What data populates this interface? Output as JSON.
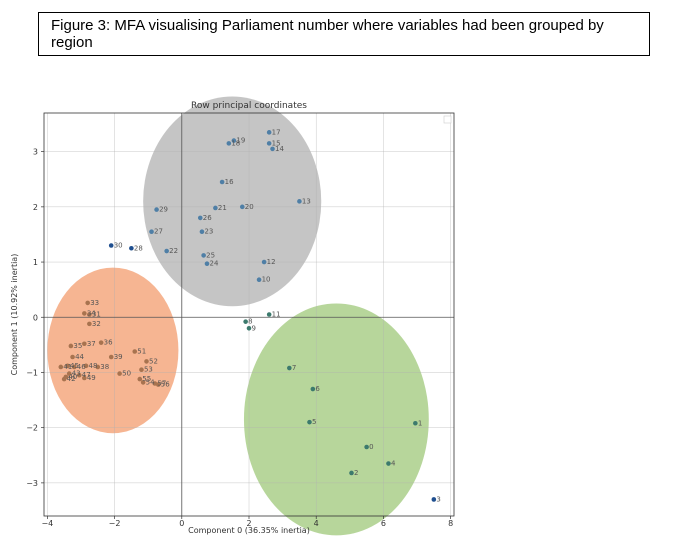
{
  "caption": "Figure 3: MFA visualising Parliament number where variables had been grouped by region",
  "chart_data": {
    "type": "scatter",
    "title": "Row principal coordinates",
    "xlabel": "Component 0 (36.35% inertia)",
    "ylabel": "Component 1 (10.92% inertia)",
    "xlim": [
      -4.1,
      8.1
    ],
    "ylim": [
      -3.6,
      3.7
    ],
    "xticks": [
      {
        "v": -4,
        "t": "−4"
      },
      {
        "v": -2,
        "t": "−2"
      },
      {
        "v": 0,
        "t": "0"
      },
      {
        "v": 2,
        "t": "2"
      },
      {
        "v": 4,
        "t": "4"
      },
      {
        "v": 6,
        "t": "6"
      },
      {
        "v": 8,
        "t": "8"
      }
    ],
    "yticks": [
      {
        "v": 3,
        "t": "3"
      },
      {
        "v": 2,
        "t": "2"
      },
      {
        "v": 1,
        "t": "1"
      },
      {
        "v": 0,
        "t": "0"
      },
      {
        "v": -1,
        "t": "−1"
      },
      {
        "v": -2,
        "t": "−2"
      },
      {
        "v": -3,
        "t": "−3"
      }
    ],
    "grid": true,
    "cluster_ellipses": [
      {
        "cx": 1.5,
        "cy": 2.1,
        "rx": 2.65,
        "ry": 1.9,
        "color": "#b8b8b8"
      },
      {
        "cx": -2.05,
        "cy": -0.6,
        "rx": 1.95,
        "ry": 1.5,
        "color": "#f4a57a"
      },
      {
        "cx": 4.6,
        "cy": -1.85,
        "rx": 2.75,
        "ry": 2.1,
        "color": "#a7cd85"
      }
    ],
    "points": [
      {
        "id": "19",
        "x": 1.55,
        "y": 3.2,
        "color": "#4f7fa6"
      },
      {
        "id": "18",
        "x": 1.4,
        "y": 3.15,
        "color": "#4f7fa6"
      },
      {
        "id": "17",
        "x": 2.6,
        "y": 3.35,
        "color": "#4f7fa6"
      },
      {
        "id": "15",
        "x": 2.6,
        "y": 3.15,
        "color": "#4f7fa6"
      },
      {
        "id": "14",
        "x": 2.7,
        "y": 3.05,
        "color": "#4f7fa6"
      },
      {
        "id": "16",
        "x": 1.2,
        "y": 2.45,
        "color": "#4f7fa6"
      },
      {
        "id": "13",
        "x": 3.5,
        "y": 2.1,
        "color": "#4f7fa6"
      },
      {
        "id": "20",
        "x": 1.8,
        "y": 2.0,
        "color": "#4f7fa6"
      },
      {
        "id": "21",
        "x": 1.0,
        "y": 1.98,
        "color": "#4f7fa6"
      },
      {
        "id": "29",
        "x": -0.75,
        "y": 1.95,
        "color": "#4f7fa6"
      },
      {
        "id": "26",
        "x": 0.55,
        "y": 1.8,
        "color": "#4f7fa6"
      },
      {
        "id": "23",
        "x": 0.6,
        "y": 1.55,
        "color": "#4f7fa6"
      },
      {
        "id": "27",
        "x": -0.9,
        "y": 1.55,
        "color": "#4f7fa6"
      },
      {
        "id": "30",
        "x": -2.1,
        "y": 1.3,
        "color": "#1f4f8f"
      },
      {
        "id": "28",
        "x": -1.5,
        "y": 1.25,
        "color": "#1f4f8f"
      },
      {
        "id": "22",
        "x": -0.45,
        "y": 1.2,
        "color": "#4f7fa6"
      },
      {
        "id": "25",
        "x": 0.65,
        "y": 1.12,
        "color": "#4f7fa6"
      },
      {
        "id": "24",
        "x": 0.75,
        "y": 0.97,
        "color": "#4f7fa6"
      },
      {
        "id": "12",
        "x": 2.45,
        "y": 1.0,
        "color": "#4f7fa6"
      },
      {
        "id": "10",
        "x": 2.3,
        "y": 0.68,
        "color": "#4f7fa6"
      },
      {
        "id": "11",
        "x": 2.6,
        "y": 0.05,
        "color": "#3c7a6d"
      },
      {
        "id": "8",
        "x": 1.9,
        "y": -0.08,
        "color": "#3c7a6d"
      },
      {
        "id": "9",
        "x": 2.0,
        "y": -0.2,
        "color": "#3c7a6d"
      },
      {
        "id": "7",
        "x": 3.2,
        "y": -0.92,
        "color": "#3c7a6d"
      },
      {
        "id": "6",
        "x": 3.9,
        "y": -1.3,
        "color": "#3c7a6d"
      },
      {
        "id": "5",
        "x": 3.8,
        "y": -1.9,
        "color": "#3c7a6d"
      },
      {
        "id": "1",
        "x": 6.95,
        "y": -1.92,
        "color": "#3c7a6d"
      },
      {
        "id": "0",
        "x": 5.5,
        "y": -2.35,
        "color": "#3c7a6d"
      },
      {
        "id": "4",
        "x": 6.15,
        "y": -2.65,
        "color": "#3c7a6d"
      },
      {
        "id": "2",
        "x": 5.05,
        "y": -2.82,
        "color": "#3c7a6d"
      },
      {
        "id": "3",
        "x": 7.5,
        "y": -3.3,
        "color": "#1f4f8f"
      },
      {
        "id": "33",
        "x": -2.8,
        "y": 0.26,
        "color": "#a8734f"
      },
      {
        "id": "34",
        "x": -2.9,
        "y": 0.07,
        "color": "#a8734f"
      },
      {
        "id": "31",
        "x": -2.75,
        "y": 0.05,
        "color": "#a8734f"
      },
      {
        "id": "32",
        "x": -2.75,
        "y": -0.12,
        "color": "#a8734f"
      },
      {
        "id": "35",
        "x": -3.3,
        "y": -0.52,
        "color": "#a8734f"
      },
      {
        "id": "37",
        "x": -2.9,
        "y": -0.48,
        "color": "#a8734f"
      },
      {
        "id": "36",
        "x": -2.4,
        "y": -0.46,
        "color": "#a8734f"
      },
      {
        "id": "44",
        "x": -3.25,
        "y": -0.72,
        "color": "#a8734f"
      },
      {
        "id": "39",
        "x": -2.1,
        "y": -0.72,
        "color": "#a8734f"
      },
      {
        "id": "51",
        "x": -1.4,
        "y": -0.62,
        "color": "#a8734f"
      },
      {
        "id": "52",
        "x": -1.05,
        "y": -0.8,
        "color": "#a8734f"
      },
      {
        "id": "41",
        "x": -3.6,
        "y": -0.9,
        "color": "#a8734f"
      },
      {
        "id": "45",
        "x": -3.4,
        "y": -0.88,
        "color": "#a8734f"
      },
      {
        "id": "46",
        "x": -3.2,
        "y": -0.9,
        "color": "#a8734f"
      },
      {
        "id": "48",
        "x": -2.85,
        "y": -0.88,
        "color": "#a8734f"
      },
      {
        "id": "38",
        "x": -2.5,
        "y": -0.9,
        "color": "#a8734f"
      },
      {
        "id": "43",
        "x": -3.35,
        "y": -1.02,
        "color": "#a8734f"
      },
      {
        "id": "47",
        "x": -3.05,
        "y": -1.05,
        "color": "#a8734f"
      },
      {
        "id": "40",
        "x": -3.45,
        "y": -1.08,
        "color": "#a8734f"
      },
      {
        "id": "49",
        "x": -2.9,
        "y": -1.1,
        "color": "#a8734f"
      },
      {
        "id": "42",
        "x": -3.5,
        "y": -1.12,
        "color": "#a8734f"
      },
      {
        "id": "50",
        "x": -1.85,
        "y": -1.02,
        "color": "#a8734f"
      },
      {
        "id": "53",
        "x": -1.2,
        "y": -0.95,
        "color": "#a8734f"
      },
      {
        "id": "55",
        "x": -1.25,
        "y": -1.12,
        "color": "#a8734f"
      },
      {
        "id": "54",
        "x": -1.15,
        "y": -1.18,
        "color": "#a8734f"
      },
      {
        "id": "57",
        "x": -0.8,
        "y": -1.2,
        "color": "#a8734f"
      },
      {
        "id": "56",
        "x": -0.7,
        "y": -1.22,
        "color": "#a8734f"
      }
    ]
  }
}
